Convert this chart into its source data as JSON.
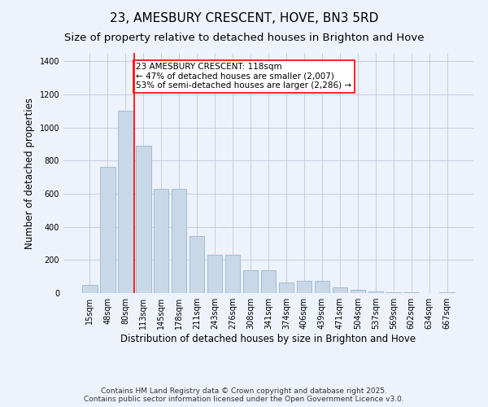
{
  "title": "23, AMESBURY CRESCENT, HOVE, BN3 5RD",
  "subtitle": "Size of property relative to detached houses in Brighton and Hove",
  "xlabel": "Distribution of detached houses by size in Brighton and Hove",
  "ylabel": "Number of detached properties",
  "categories": [
    "15sqm",
    "48sqm",
    "80sqm",
    "113sqm",
    "145sqm",
    "178sqm",
    "211sqm",
    "243sqm",
    "276sqm",
    "308sqm",
    "341sqm",
    "374sqm",
    "406sqm",
    "439sqm",
    "471sqm",
    "504sqm",
    "537sqm",
    "569sqm",
    "602sqm",
    "634sqm",
    "667sqm"
  ],
  "values": [
    50,
    760,
    1100,
    890,
    630,
    630,
    345,
    230,
    230,
    140,
    140,
    65,
    75,
    75,
    35,
    20,
    10,
    5,
    5,
    0,
    5
  ],
  "bar_color": "#c8d8e8",
  "bar_edge_color": "#8aaec8",
  "redline_index": 3,
  "annotation_text": "23 AMESBURY CRESCENT: 118sqm\n← 47% of detached houses are smaller (2,007)\n53% of semi-detached houses are larger (2,286) →",
  "annotation_box_color": "#ffffff",
  "annotation_box_edgecolor": "red",
  "redline_color": "red",
  "ylim": [
    0,
    1450
  ],
  "yticks": [
    0,
    200,
    400,
    600,
    800,
    1000,
    1200,
    1400
  ],
  "background_color": "#eef2fb",
  "footer": "Contains HM Land Registry data © Crown copyright and database right 2025.\nContains public sector information licensed under the Open Government Licence v3.0.",
  "title_fontsize": 11,
  "xlabel_fontsize": 8.5,
  "ylabel_fontsize": 8.5,
  "tick_fontsize": 7,
  "annotation_fontsize": 7.5,
  "footer_fontsize": 6.5
}
